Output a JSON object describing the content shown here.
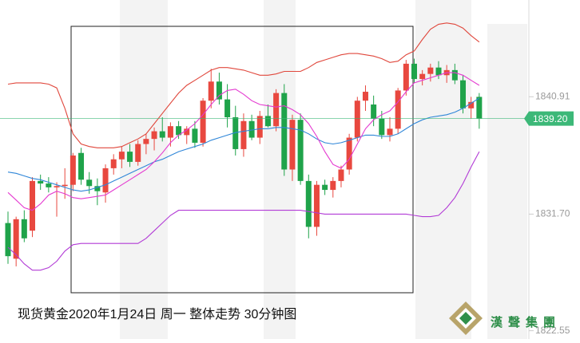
{
  "chart_data": {
    "type": "candlestick",
    "title": "现货黄金2020年1月24日 周一 整体走势 30分钟图",
    "open": [
      1831.0,
      1828.2,
      1831.3,
      1830.4,
      1834.3,
      1834.1,
      1833.8,
      1833.9,
      1834.0,
      1836.5,
      1834.4,
      1833.9,
      1833.4,
      1835.3,
      1836.0,
      1836.6,
      1835.8,
      1837.2,
      1837.6,
      1838.2,
      1837.7,
      1838.6,
      1837.9,
      1838.4,
      1837.3,
      1840.6,
      1842.1,
      1840.7,
      1839.3,
      1836.8,
      1839.0,
      1837.7,
      1839.4,
      1838.6,
      1841.2,
      1835.2,
      1839.1,
      1834.3,
      1830.7,
      1834.0,
      1833.6,
      1834.3,
      1835.2,
      1837.7,
      1840.6,
      1840.3,
      1839.2,
      1837.9,
      1838.4,
      1841.4,
      1843.5,
      1842.3,
      1842.7,
      1843.2,
      1842.6,
      1843.0,
      1842.2,
      1840.0,
      1840.9
    ],
    "high": [
      1831.9,
      1831.5,
      1832.0,
      1834.6,
      1834.8,
      1834.6,
      1834.2,
      1835.3,
      1836.5,
      1836.9,
      1835.0,
      1834.5,
      1835.6,
      1836.4,
      1837.0,
      1837.2,
      1837.5,
      1838.0,
      1838.5,
      1839.3,
      1838.9,
      1839.0,
      1838.6,
      1839.0,
      1840.8,
      1843.1,
      1842.8,
      1841.9,
      1840.2,
      1839.6,
      1839.5,
      1839.8,
      1840.3,
      1841.5,
      1841.9,
      1839.5,
      1839.6,
      1834.8,
      1834.3,
      1834.4,
      1834.6,
      1835.5,
      1838.0,
      1840.9,
      1841.8,
      1841.0,
      1839.8,
      1839.3,
      1841.6,
      1843.8,
      1843.9,
      1843.0,
      1843.5,
      1843.7,
      1843.4,
      1843.5,
      1842.6,
      1840.9,
      1841.2
    ],
    "low": [
      1827.8,
      1827.6,
      1829.5,
      1829.9,
      1833.6,
      1833.4,
      1831.5,
      1832.9,
      1833.5,
      1834.0,
      1833.3,
      1832.4,
      1832.6,
      1834.8,
      1835.3,
      1835.4,
      1835.5,
      1836.4,
      1836.7,
      1837.4,
      1837.0,
      1837.6,
      1837.2,
      1836.9,
      1837.0,
      1840.0,
      1840.3,
      1838.5,
      1836.3,
      1836.2,
      1837.5,
      1837.2,
      1838.5,
      1838.2,
      1834.7,
      1834.3,
      1834.0,
      1829.8,
      1830.0,
      1833.2,
      1833.0,
      1833.8,
      1834.8,
      1837.4,
      1839.8,
      1838.6,
      1837.6,
      1837.4,
      1838.0,
      1841.0,
      1842.0,
      1841.8,
      1842.1,
      1842.3,
      1842.0,
      1841.9,
      1839.6,
      1839.2,
      1838.4
    ],
    "close": [
      1828.4,
      1831.3,
      1829.8,
      1834.3,
      1834.1,
      1833.8,
      1833.9,
      1834.0,
      1836.3,
      1834.4,
      1833.9,
      1833.5,
      1835.3,
      1836.0,
      1836.6,
      1835.8,
      1837.2,
      1837.6,
      1838.2,
      1837.7,
      1838.6,
      1837.9,
      1838.4,
      1837.3,
      1840.6,
      1842.1,
      1840.7,
      1839.3,
      1836.8,
      1839.0,
      1837.7,
      1839.4,
      1838.6,
      1841.2,
      1835.2,
      1839.1,
      1834.3,
      1830.7,
      1834.0,
      1833.6,
      1834.3,
      1835.2,
      1837.7,
      1840.6,
      1841.3,
      1839.2,
      1837.9,
      1838.4,
      1841.4,
      1843.5,
      1842.3,
      1842.7,
      1843.2,
      1842.6,
      1843.0,
      1842.2,
      1840.0,
      1840.5,
      1839.2
    ],
    "up_color": "#e8483f",
    "down_color": "#1fa34a",
    "series": [
      {
        "color": "#e0473c",
        "values": [
          1841.9,
          1842.0,
          1842.0,
          1842.0,
          1842.0,
          1841.9,
          1841.6,
          1840.0,
          1838.0,
          1837.2,
          1837.0,
          1836.9,
          1836.9,
          1836.9,
          1837.0,
          1837.3,
          1837.6,
          1838.0,
          1838.8,
          1839.6,
          1840.4,
          1841.2,
          1841.8,
          1842.2,
          1842.6,
          1843.0,
          1843.2,
          1843.2,
          1843.1,
          1843.0,
          1842.8,
          1842.6,
          1842.6,
          1842.7,
          1842.9,
          1842.9,
          1842.9,
          1843.2,
          1843.6,
          1843.8,
          1844.0,
          1844.2,
          1844.3,
          1844.3,
          1844.2,
          1844.1,
          1843.9,
          1843.6,
          1843.7,
          1844.2,
          1844.5,
          1845.4,
          1846.2,
          1846.6,
          1846.7,
          1846.6,
          1846.3,
          1845.7,
          1845.2
        ]
      },
      {
        "color": "#b23bd6",
        "values": [
          1829.1,
          1828.5,
          1827.8,
          1827.3,
          1827.3,
          1827.5,
          1828.0,
          1828.8,
          1829.3,
          1829.4,
          1829.4,
          1829.4,
          1829.4,
          1829.4,
          1829.4,
          1829.4,
          1829.4,
          1829.8,
          1830.4,
          1831.0,
          1831.6,
          1832.0,
          1832.0,
          1832.0,
          1832.0,
          1832.0,
          1832.0,
          1832.0,
          1832.0,
          1832.0,
          1832.0,
          1832.0,
          1832.0,
          1832.0,
          1832.0,
          1832.0,
          1832.0,
          1831.9,
          1831.8,
          1831.7,
          1831.7,
          1831.7,
          1831.7,
          1831.7,
          1831.7,
          1831.7,
          1831.7,
          1831.7,
          1831.7,
          1831.7,
          1831.6,
          1831.5,
          1831.5,
          1831.6,
          1832.2,
          1833.0,
          1834.1,
          1835.4,
          1836.6
        ]
      },
      {
        "color": "#2f86d8",
        "values": [
          1835.0,
          1834.9,
          1834.7,
          1834.5,
          1834.4,
          1834.2,
          1834.0,
          1833.8,
          1833.6,
          1833.5,
          1833.6,
          1833.8,
          1834.0,
          1834.3,
          1834.6,
          1834.9,
          1835.2,
          1835.5,
          1835.8,
          1836.0,
          1836.3,
          1836.6,
          1836.8,
          1837.0,
          1837.2,
          1837.5,
          1837.7,
          1837.9,
          1838.1,
          1838.2,
          1838.3,
          1838.4,
          1838.4,
          1838.5,
          1838.5,
          1838.4,
          1838.3,
          1838.0,
          1837.6,
          1837.3,
          1837.2,
          1837.3,
          1837.5,
          1837.7,
          1837.9,
          1837.9,
          1837.8,
          1837.8,
          1838.0,
          1838.4,
          1838.8,
          1839.1,
          1839.3,
          1839.4,
          1839.5,
          1839.7,
          1840.0,
          1840.4,
          1840.8
        ]
      },
      {
        "color": "#e43ad0",
        "values": [
          1833.4,
          1832.8,
          1832.2,
          1832.0,
          1832.5,
          1833.2,
          1833.5,
          1833.3,
          1833.0,
          1832.9,
          1833.0,
          1833.1,
          1833.2,
          1833.6,
          1834.0,
          1834.4,
          1834.8,
          1835.2,
          1835.8,
          1836.5,
          1837.3,
          1837.9,
          1838.3,
          1838.8,
          1839.5,
          1840.3,
          1841.0,
          1841.4,
          1841.5,
          1841.1,
          1840.6,
          1840.3,
          1840.2,
          1840.1,
          1840.2,
          1839.9,
          1839.5,
          1838.8,
          1837.8,
          1836.6,
          1835.6,
          1835.3,
          1836.0,
          1837.2,
          1838.4,
          1839.1,
          1839.5,
          1839.8,
          1840.5,
          1841.3,
          1842.0,
          1842.2,
          1842.4,
          1842.6,
          1842.8,
          1842.8,
          1842.6,
          1842.2,
          1841.8
        ]
      }
    ],
    "ylim": [
      1821.9,
      1848.5
    ],
    "yticks": [
      1822.55,
      {
        "value": 1831.7,
        "label": "1831.70"
      },
      1840.91
    ],
    "last_price": {
      "value": 1839.2,
      "label": "1839.20"
    },
    "last_price_color": "#3cb878"
  },
  "logo": {
    "text": "漢聲集團"
  }
}
